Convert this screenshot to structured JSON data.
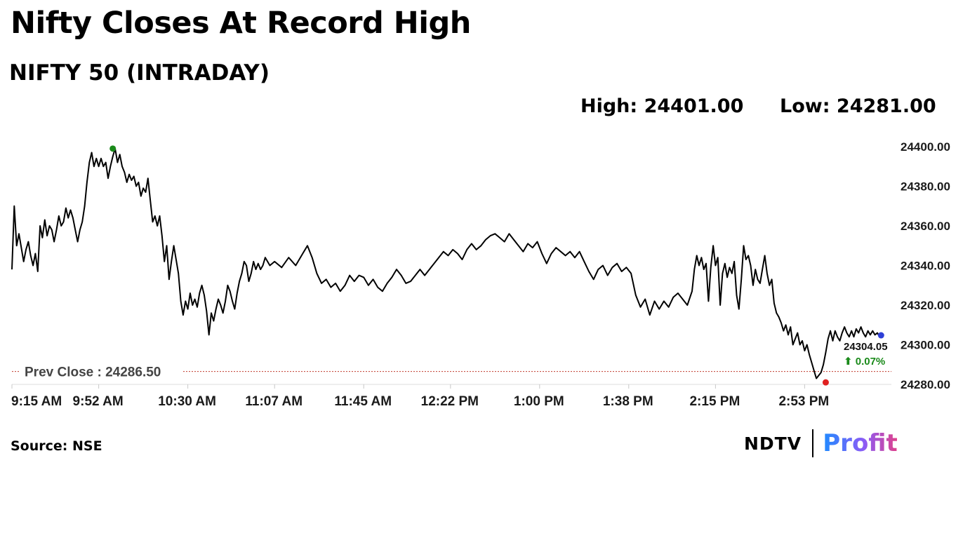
{
  "header": {
    "title": "Nifty Closes At Record High",
    "subtitle": "NIFTY 50 (INTRADAY)"
  },
  "stats": {
    "high_label": "High:",
    "high_value": "24401.00",
    "low_label": "Low:",
    "low_value": "24281.00"
  },
  "footer": {
    "source": "Source: NSE",
    "logo_left": "NDTV",
    "logo_right": "Profit"
  },
  "chart_data": {
    "type": "line",
    "title": "NIFTY 50 (INTRADAY)",
    "x_ticks": [
      "9:15 AM",
      "9:52 AM",
      "10:30 AM",
      "11:07 AM",
      "11:45 AM",
      "12:22 PM",
      "1:00 PM",
      "1:38 PM",
      "2:15 PM",
      "2:53 PM"
    ],
    "x_range": [
      "9:15 AM",
      "3:30 PM"
    ],
    "y_ticks": [
      24400.0,
      24380.0,
      24360.0,
      24340.0,
      24320.0,
      24300.0,
      24280.0
    ],
    "ylim": [
      24280,
      24400
    ],
    "grid": false,
    "prev_close": {
      "label": "Prev Close : 24286.50",
      "value": 24286.5,
      "color": "#c0392b"
    },
    "last": {
      "value_label": "24304.05",
      "change_label": "⬆ 0.07%",
      "value": 24304.05
    },
    "high_marker": {
      "time": "9:58 AM",
      "value": 24399,
      "color": "#1a8a1a"
    },
    "low_marker": {
      "time": "3:02 PM",
      "value": 24281,
      "color": "#e02020"
    },
    "last_marker_color": "#2e3fd6",
    "series": [
      {
        "color": "#000000",
        "points": [
          [
            "9:15 AM",
            24338
          ],
          [
            "9:16 AM",
            24370
          ],
          [
            "9:17 AM",
            24350
          ],
          [
            "9:18 AM",
            24356
          ],
          [
            "9:20 AM",
            24342
          ],
          [
            "9:21 AM",
            24348
          ],
          [
            "9:22 AM",
            24352
          ],
          [
            "9:23 AM",
            24345
          ],
          [
            "9:24 AM",
            24340
          ],
          [
            "9:25 AM",
            24346
          ],
          [
            "9:26 AM",
            24337
          ],
          [
            "9:27 AM",
            24360
          ],
          [
            "9:28 AM",
            24354
          ],
          [
            "9:29 AM",
            24363
          ],
          [
            "9:30 AM",
            24355
          ],
          [
            "9:31 AM",
            24360
          ],
          [
            "9:32 AM",
            24358
          ],
          [
            "9:33 AM",
            24352
          ],
          [
            "9:34 AM",
            24358
          ],
          [
            "9:35 AM",
            24365
          ],
          [
            "9:36 AM",
            24360
          ],
          [
            "9:37 AM",
            24362
          ],
          [
            "9:38 AM",
            24369
          ],
          [
            "9:39 AM",
            24364
          ],
          [
            "9:40 AM",
            24368
          ],
          [
            "9:41 AM",
            24364
          ],
          [
            "9:42 AM",
            24358
          ],
          [
            "9:43 AM",
            24352
          ],
          [
            "9:44 AM",
            24358
          ],
          [
            "9:45 AM",
            24362
          ],
          [
            "9:46 AM",
            24370
          ],
          [
            "9:47 AM",
            24382
          ],
          [
            "9:48 AM",
            24392
          ],
          [
            "9:49 AM",
            24397
          ],
          [
            "9:50 AM",
            24390
          ],
          [
            "9:51 AM",
            24394
          ],
          [
            "9:52 AM",
            24390
          ],
          [
            "9:53 AM",
            24394
          ],
          [
            "9:54 AM",
            24390
          ],
          [
            "9:55 AM",
            24392
          ],
          [
            "9:56 AM",
            24384
          ],
          [
            "9:57 AM",
            24390
          ],
          [
            "9:58 AM",
            24395
          ],
          [
            "9:59 AM",
            24399
          ],
          [
            "10:00 AM",
            24392
          ],
          [
            "10:01 AM",
            24396
          ],
          [
            "10:02 AM",
            24390
          ],
          [
            "10:03 AM",
            24387
          ],
          [
            "10:04 AM",
            24382
          ],
          [
            "10:05 AM",
            24386
          ],
          [
            "10:06 AM",
            24383
          ],
          [
            "10:07 AM",
            24385
          ],
          [
            "10:08 AM",
            24380
          ],
          [
            "10:09 AM",
            24382
          ],
          [
            "10:10 AM",
            24375
          ],
          [
            "10:11 AM",
            24379
          ],
          [
            "10:12 AM",
            24377
          ],
          [
            "10:13 AM",
            24384
          ],
          [
            "10:14 AM",
            24373
          ],
          [
            "10:15 AM",
            24362
          ],
          [
            "10:16 AM",
            24365
          ],
          [
            "10:17 AM",
            24360
          ],
          [
            "10:18 AM",
            24365
          ],
          [
            "10:19 AM",
            24355
          ],
          [
            "10:20 AM",
            24342
          ],
          [
            "10:21 AM",
            24350
          ],
          [
            "10:22 AM",
            24333
          ],
          [
            "10:23 AM",
            24342
          ],
          [
            "10:24 AM",
            24350
          ],
          [
            "10:25 AM",
            24343
          ],
          [
            "10:26 AM",
            24336
          ],
          [
            "10:27 AM",
            24322
          ],
          [
            "10:28 AM",
            24315
          ],
          [
            "10:29 AM",
            24322
          ],
          [
            "10:30 AM",
            24318
          ],
          [
            "10:31 AM",
            24326
          ],
          [
            "10:32 AM",
            24320
          ],
          [
            "10:33 AM",
            24323
          ],
          [
            "10:34 AM",
            24319
          ],
          [
            "10:35 AM",
            24326
          ],
          [
            "10:36 AM",
            24330
          ],
          [
            "10:37 AM",
            24325
          ],
          [
            "10:38 AM",
            24317
          ],
          [
            "10:39 AM",
            24305
          ],
          [
            "10:40 AM",
            24316
          ],
          [
            "10:41 AM",
            24312
          ],
          [
            "10:42 AM",
            24318
          ],
          [
            "10:43 AM",
            24323
          ],
          [
            "10:44 AM",
            24320
          ],
          [
            "10:45 AM",
            24316
          ],
          [
            "10:46 AM",
            24322
          ],
          [
            "10:47 AM",
            24330
          ],
          [
            "10:48 AM",
            24327
          ],
          [
            "10:49 AM",
            24322
          ],
          [
            "10:50 AM",
            24318
          ],
          [
            "10:51 AM",
            24326
          ],
          [
            "10:52 AM",
            24332
          ],
          [
            "10:53 AM",
            24336
          ],
          [
            "10:54 AM",
            24342
          ],
          [
            "10:55 AM",
            24340
          ],
          [
            "10:56 AM",
            24332
          ],
          [
            "10:57 AM",
            24336
          ],
          [
            "10:58 AM",
            24342
          ],
          [
            "10:59 AM",
            24338
          ],
          [
            "11:00 AM",
            24341
          ],
          [
            "11:01 AM",
            24338
          ],
          [
            "11:02 AM",
            24340
          ],
          [
            "11:03 AM",
            24344
          ],
          [
            "11:05 AM",
            24340
          ],
          [
            "11:07 AM",
            24342
          ],
          [
            "11:10 AM",
            24339
          ],
          [
            "11:13 AM",
            24344
          ],
          [
            "11:16 AM",
            24340
          ],
          [
            "11:19 AM",
            24346
          ],
          [
            "11:21 AM",
            24350
          ],
          [
            "11:23 AM",
            24344
          ],
          [
            "11:25 AM",
            24336
          ],
          [
            "11:27 AM",
            24331
          ],
          [
            "11:29 AM",
            24333
          ],
          [
            "11:31 AM",
            24329
          ],
          [
            "11:33 AM",
            24331
          ],
          [
            "11:35 AM",
            24327
          ],
          [
            "11:37 AM",
            24330
          ],
          [
            "11:39 AM",
            24335
          ],
          [
            "11:41 AM",
            24332
          ],
          [
            "11:43 AM",
            24335
          ],
          [
            "11:45 AM",
            24334
          ],
          [
            "11:47 AM",
            24330
          ],
          [
            "11:49 AM",
            24333
          ],
          [
            "11:51 AM",
            24329
          ],
          [
            "11:53 AM",
            24327
          ],
          [
            "11:55 AM",
            24331
          ],
          [
            "11:57 AM",
            24334
          ],
          [
            "11:59 AM",
            24338
          ],
          [
            "12:01 PM",
            24335
          ],
          [
            "12:03 PM",
            24331
          ],
          [
            "12:05 PM",
            24332
          ],
          [
            "12:07 PM",
            24335
          ],
          [
            "12:09 PM",
            24338
          ],
          [
            "12:11 PM",
            24335
          ],
          [
            "12:13 PM",
            24338
          ],
          [
            "12:15 PM",
            24341
          ],
          [
            "12:17 PM",
            24344
          ],
          [
            "12:19 PM",
            24347
          ],
          [
            "12:21 PM",
            24345
          ],
          [
            "12:23 PM",
            24348
          ],
          [
            "12:25 PM",
            24346
          ],
          [
            "12:27 PM",
            24343
          ],
          [
            "12:29 PM",
            24348
          ],
          [
            "12:31 PM",
            24351
          ],
          [
            "12:33 PM",
            24348
          ],
          [
            "12:35 PM",
            24350
          ],
          [
            "12:37 PM",
            24353
          ],
          [
            "12:39 PM",
            24355
          ],
          [
            "12:41 PM",
            24356
          ],
          [
            "12:43 PM",
            24354
          ],
          [
            "12:45 PM",
            24352
          ],
          [
            "12:47 PM",
            24356
          ],
          [
            "12:49 PM",
            24353
          ],
          [
            "12:51 PM",
            24350
          ],
          [
            "12:53 PM",
            24347
          ],
          [
            "12:55 PM",
            24351
          ],
          [
            "12:57 PM",
            24349
          ],
          [
            "12:59 PM",
            24352
          ],
          [
            "1:01 PM",
            24346
          ],
          [
            "1:03 PM",
            24341
          ],
          [
            "1:05 PM",
            24346
          ],
          [
            "1:07 PM",
            24349
          ],
          [
            "1:09 PM",
            24347
          ],
          [
            "1:11 PM",
            24345
          ],
          [
            "1:13 PM",
            24347
          ],
          [
            "1:15 PM",
            24344
          ],
          [
            "1:17 PM",
            24347
          ],
          [
            "1:19 PM",
            24342
          ],
          [
            "1:21 PM",
            24337
          ],
          [
            "1:23 PM",
            24333
          ],
          [
            "1:25 PM",
            24338
          ],
          [
            "1:27 PM",
            24340
          ],
          [
            "1:29 PM",
            24335
          ],
          [
            "1:31 PM",
            24339
          ],
          [
            "1:33 PM",
            24341
          ],
          [
            "1:35 PM",
            24337
          ],
          [
            "1:37 PM",
            24339
          ],
          [
            "1:39 PM",
            24336
          ],
          [
            "1:41 PM",
            24325
          ],
          [
            "1:43 PM",
            24319
          ],
          [
            "1:45 PM",
            24323
          ],
          [
            "1:47 PM",
            24315
          ],
          [
            "1:49 PM",
            24322
          ],
          [
            "1:51 PM",
            24318
          ],
          [
            "1:53 PM",
            24322
          ],
          [
            "1:55 PM",
            24319
          ],
          [
            "1:57 PM",
            24324
          ],
          [
            "1:59 PM",
            24326
          ],
          [
            "2:01 PM",
            24323
          ],
          [
            "2:03 PM",
            24320
          ],
          [
            "2:05 PM",
            24327
          ],
          [
            "2:06 PM",
            24338
          ],
          [
            "2:07 PM",
            24345
          ],
          [
            "2:08 PM",
            24340
          ],
          [
            "2:09 PM",
            24344
          ],
          [
            "2:10 PM",
            24338
          ],
          [
            "2:11 PM",
            24341
          ],
          [
            "2:12 PM",
            24322
          ],
          [
            "2:13 PM",
            24339
          ],
          [
            "2:14 PM",
            24350
          ],
          [
            "2:15 PM",
            24340
          ],
          [
            "2:16 PM",
            24344
          ],
          [
            "2:17 PM",
            24320
          ],
          [
            "2:18 PM",
            24336
          ],
          [
            "2:19 PM",
            24341
          ],
          [
            "2:20 PM",
            24334
          ],
          [
            "2:21 PM",
            24339
          ],
          [
            "2:22 PM",
            24336
          ],
          [
            "2:23 PM",
            24342
          ],
          [
            "2:24 PM",
            24325
          ],
          [
            "2:25 PM",
            24318
          ],
          [
            "2:26 PM",
            24333
          ],
          [
            "2:27 PM",
            24350
          ],
          [
            "2:28 PM",
            24343
          ],
          [
            "2:29 PM",
            24345
          ],
          [
            "2:30 PM",
            24340
          ],
          [
            "2:31 PM",
            24330
          ],
          [
            "2:32 PM",
            24338
          ],
          [
            "2:33 PM",
            24333
          ],
          [
            "2:34 PM",
            24331
          ],
          [
            "2:35 PM",
            24338
          ],
          [
            "2:36 PM",
            24345
          ],
          [
            "2:37 PM",
            24336
          ],
          [
            "2:38 PM",
            24330
          ],
          [
            "2:39 PM",
            24333
          ],
          [
            "2:40 PM",
            24321
          ],
          [
            "2:41 PM",
            24316
          ],
          [
            "2:42 PM",
            24314
          ],
          [
            "2:43 PM",
            24311
          ],
          [
            "2:44 PM",
            24307
          ],
          [
            "2:45 PM",
            24310
          ],
          [
            "2:46 PM",
            24305
          ],
          [
            "2:47 PM",
            24309
          ],
          [
            "2:48 PM",
            24300
          ],
          [
            "2:49 PM",
            24303
          ],
          [
            "2:50 PM",
            24306
          ],
          [
            "2:51 PM",
            24300
          ],
          [
            "2:52 PM",
            24302
          ],
          [
            "2:53 PM",
            24297
          ],
          [
            "2:54 PM",
            24300
          ],
          [
            "2:55 PM",
            24295
          ],
          [
            "2:56 PM",
            24291
          ],
          [
            "2:57 PM",
            24287
          ],
          [
            "2:58 PM",
            24283
          ],
          [
            "3:00 PM",
            24286
          ],
          [
            "3:01 PM",
            24290
          ],
          [
            "3:02 PM",
            24296
          ],
          [
            "3:03 PM",
            24303
          ],
          [
            "3:04 PM",
            24307
          ],
          [
            "3:05 PM",
            24302
          ],
          [
            "3:06 PM",
            24307
          ],
          [
            "3:07 PM",
            24304
          ],
          [
            "3:08 PM",
            24302
          ],
          [
            "3:09 PM",
            24306
          ],
          [
            "3:10 PM",
            24309
          ],
          [
            "3:11 PM",
            24306
          ],
          [
            "3:12 PM",
            24304
          ],
          [
            "3:13 PM",
            24307
          ],
          [
            "3:14 PM",
            24304
          ],
          [
            "3:15 PM",
            24308
          ],
          [
            "3:16 PM",
            24306
          ],
          [
            "3:17 PM",
            24309
          ],
          [
            "3:18 PM",
            24306
          ],
          [
            "3:19 PM",
            24304
          ],
          [
            "3:20 PM",
            24307
          ],
          [
            "3:21 PM",
            24305
          ],
          [
            "3:22 PM",
            24307
          ],
          [
            "3:23 PM",
            24305
          ],
          [
            "3:24 PM",
            24306
          ],
          [
            "3:25 PM",
            24304.05
          ]
        ]
      }
    ]
  }
}
